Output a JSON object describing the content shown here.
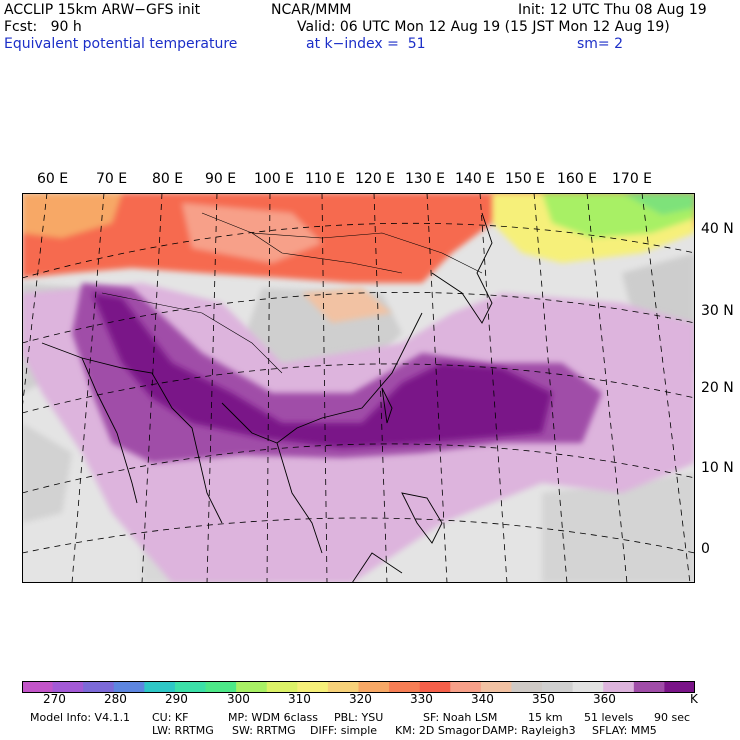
{
  "header": {
    "left": [
      "ACCLIP 15km ARW−GFS init",
      "Fcst:   90 h",
      "Equivalent potential temperature"
    ],
    "center": "NCAR/MMM",
    "init": "Init: 12 UTC Thu 08 Aug 19",
    "valid": "Valid: 06 UTC Mon 12 Aug 19 (15 JST Mon 12 Aug 19)",
    "level": "at k−index =  51",
    "smooth": "sm= 2"
  },
  "map": {
    "lon_labels": [
      "60 E",
      "70 E",
      "80 E",
      "90 E",
      "100 E",
      "110 E",
      "120 E",
      "130 E",
      "140 E",
      "150 E",
      "160 E",
      "170 E"
    ],
    "lat_labels": [
      "40 N",
      "30 N",
      "20 N",
      "10 N",
      "0"
    ]
  },
  "colorbar": {
    "colors": [
      "#c355c9",
      "#a35ad6",
      "#7c6ad8",
      "#5d86e0",
      "#2ec7c6",
      "#3ce0a8",
      "#4de888",
      "#a8f065",
      "#dcf268",
      "#f6f07a",
      "#f7d27a",
      "#f7a866",
      "#f67e55",
      "#f5604a",
      "#f7a089",
      "#f2c2a3",
      "#cfcac6",
      "#d0d0d0",
      "#e2e2e2",
      "#ddb4dd",
      "#a04da8",
      "#7a1488"
    ],
    "ticks": [
      "270",
      "280",
      "290",
      "300",
      "310",
      "320",
      "330",
      "340",
      "350",
      "360"
    ],
    "unit": "K"
  },
  "footer": {
    "line1": [
      "Model Info: V4.1.1",
      "CU: KF",
      "MP: WDM 6class",
      "PBL: YSU",
      "SF: Noah LSM",
      "15 km",
      "51 levels",
      "90 sec"
    ],
    "line2": [
      "LW: RRTMG",
      "SW: RRTMG",
      "DIFF: simple",
      "KM: 2D Smagor",
      "DAMP: Rayleigh3",
      "SFLAY: MM5"
    ]
  }
}
